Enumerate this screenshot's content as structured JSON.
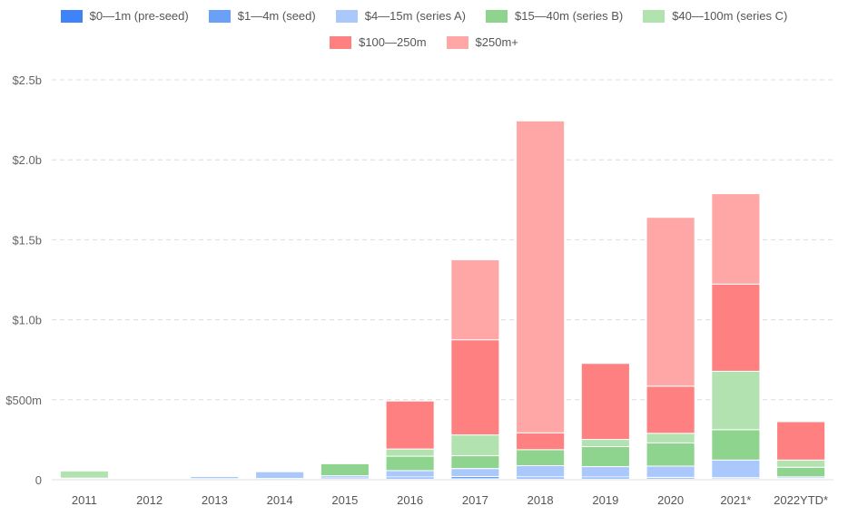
{
  "chart_data": {
    "type": "bar",
    "stacked": true,
    "title": "",
    "xlabel": "",
    "ylabel": "",
    "ylim": [
      0,
      2.5
    ],
    "y_ticks": [
      0,
      0.5,
      1.0,
      1.5,
      2.0,
      2.5
    ],
    "y_tick_labels": [
      "0",
      "$500m",
      "$1.0b",
      "$1.5b",
      "$2.0b",
      "$2.5b"
    ],
    "grid": true,
    "legend_position": "top-center",
    "categories": [
      "2011",
      "2012",
      "2013",
      "2014",
      "2015",
      "2016",
      "2017",
      "2018",
      "2019",
      "2020",
      "2021*",
      "2022YTD*"
    ],
    "series": [
      {
        "name": "$0—1m (pre-seed)",
        "color": "#3f83f8",
        "values": [
          0.002,
          0.001,
          0.002,
          0.002,
          0.003,
          0.005,
          0.006,
          0.005,
          0.005,
          0.005,
          0.005,
          0.003
        ]
      },
      {
        "name": "$1—4m (seed)",
        "color": "#6aa0f8",
        "values": [
          0.003,
          0.003,
          0.005,
          0.006,
          0.008,
          0.012,
          0.014,
          0.013,
          0.012,
          0.01,
          0.008,
          0.005
        ]
      },
      {
        "name": "$4—15m (series A)",
        "color": "#aac8fc",
        "values": [
          0.005,
          0.005,
          0.013,
          0.042,
          0.014,
          0.04,
          0.05,
          0.07,
          0.065,
          0.07,
          0.11,
          0.01
        ]
      },
      {
        "name": "$15—40m (series B)",
        "color": "#8ed38e",
        "values": [
          0.0,
          0.0,
          0.0,
          0.0,
          0.075,
          0.09,
          0.08,
          0.1,
          0.125,
          0.145,
          0.19,
          0.06
        ]
      },
      {
        "name": "$40—100m (series C)",
        "color": "#b2e2b0",
        "values": [
          0.045,
          0.0,
          0.0,
          0.0,
          0.0,
          0.045,
          0.13,
          0.0,
          0.045,
          0.06,
          0.365,
          0.045
        ]
      },
      {
        "name": "$100—250m",
        "color": "#ff8080",
        "values": [
          0.0,
          0.0,
          0.0,
          0.0,
          0.0,
          0.3,
          0.595,
          0.105,
          0.475,
          0.295,
          0.545,
          0.24
        ]
      },
      {
        "name": "$250m+",
        "color": "#ffa6a6",
        "values": [
          0.0,
          0.0,
          0.0,
          0.0,
          0.0,
          0.0,
          0.5,
          1.95,
          0.0,
          1.055,
          0.565,
          0.0
        ]
      }
    ]
  }
}
